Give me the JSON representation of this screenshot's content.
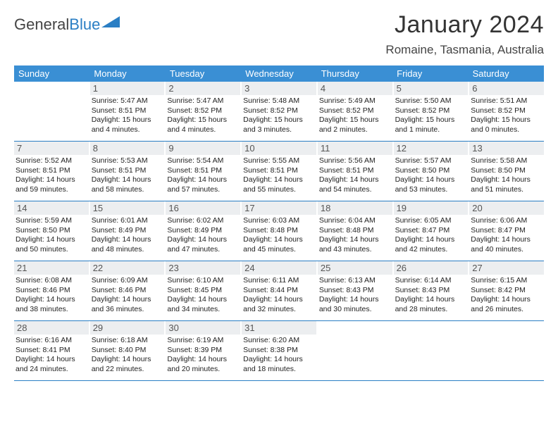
{
  "logo": {
    "general": "General",
    "blue": "Blue"
  },
  "title": "January 2024",
  "location": "Romaine, Tasmania, Australia",
  "colors": {
    "header_bg": "#3a8fd4",
    "divider": "#2a7ec4",
    "daynum_bg": "#eceef0",
    "text": "#222222",
    "logo_blue": "#2a7ec4",
    "logo_gray": "#444444"
  },
  "dayNames": [
    "Sunday",
    "Monday",
    "Tuesday",
    "Wednesday",
    "Thursday",
    "Friday",
    "Saturday"
  ],
  "startOffset": 1,
  "days": [
    {
      "n": 1,
      "rise": "5:47 AM",
      "set": "8:51 PM",
      "dl": "15 hours and 4 minutes."
    },
    {
      "n": 2,
      "rise": "5:47 AM",
      "set": "8:52 PM",
      "dl": "15 hours and 4 minutes."
    },
    {
      "n": 3,
      "rise": "5:48 AM",
      "set": "8:52 PM",
      "dl": "15 hours and 3 minutes."
    },
    {
      "n": 4,
      "rise": "5:49 AM",
      "set": "8:52 PM",
      "dl": "15 hours and 2 minutes."
    },
    {
      "n": 5,
      "rise": "5:50 AM",
      "set": "8:52 PM",
      "dl": "15 hours and 1 minute."
    },
    {
      "n": 6,
      "rise": "5:51 AM",
      "set": "8:52 PM",
      "dl": "15 hours and 0 minutes."
    },
    {
      "n": 7,
      "rise": "5:52 AM",
      "set": "8:51 PM",
      "dl": "14 hours and 59 minutes."
    },
    {
      "n": 8,
      "rise": "5:53 AM",
      "set": "8:51 PM",
      "dl": "14 hours and 58 minutes."
    },
    {
      "n": 9,
      "rise": "5:54 AM",
      "set": "8:51 PM",
      "dl": "14 hours and 57 minutes."
    },
    {
      "n": 10,
      "rise": "5:55 AM",
      "set": "8:51 PM",
      "dl": "14 hours and 55 minutes."
    },
    {
      "n": 11,
      "rise": "5:56 AM",
      "set": "8:51 PM",
      "dl": "14 hours and 54 minutes."
    },
    {
      "n": 12,
      "rise": "5:57 AM",
      "set": "8:50 PM",
      "dl": "14 hours and 53 minutes."
    },
    {
      "n": 13,
      "rise": "5:58 AM",
      "set": "8:50 PM",
      "dl": "14 hours and 51 minutes."
    },
    {
      "n": 14,
      "rise": "5:59 AM",
      "set": "8:50 PM",
      "dl": "14 hours and 50 minutes."
    },
    {
      "n": 15,
      "rise": "6:01 AM",
      "set": "8:49 PM",
      "dl": "14 hours and 48 minutes."
    },
    {
      "n": 16,
      "rise": "6:02 AM",
      "set": "8:49 PM",
      "dl": "14 hours and 47 minutes."
    },
    {
      "n": 17,
      "rise": "6:03 AM",
      "set": "8:48 PM",
      "dl": "14 hours and 45 minutes."
    },
    {
      "n": 18,
      "rise": "6:04 AM",
      "set": "8:48 PM",
      "dl": "14 hours and 43 minutes."
    },
    {
      "n": 19,
      "rise": "6:05 AM",
      "set": "8:47 PM",
      "dl": "14 hours and 42 minutes."
    },
    {
      "n": 20,
      "rise": "6:06 AM",
      "set": "8:47 PM",
      "dl": "14 hours and 40 minutes."
    },
    {
      "n": 21,
      "rise": "6:08 AM",
      "set": "8:46 PM",
      "dl": "14 hours and 38 minutes."
    },
    {
      "n": 22,
      "rise": "6:09 AM",
      "set": "8:46 PM",
      "dl": "14 hours and 36 minutes."
    },
    {
      "n": 23,
      "rise": "6:10 AM",
      "set": "8:45 PM",
      "dl": "14 hours and 34 minutes."
    },
    {
      "n": 24,
      "rise": "6:11 AM",
      "set": "8:44 PM",
      "dl": "14 hours and 32 minutes."
    },
    {
      "n": 25,
      "rise": "6:13 AM",
      "set": "8:43 PM",
      "dl": "14 hours and 30 minutes."
    },
    {
      "n": 26,
      "rise": "6:14 AM",
      "set": "8:43 PM",
      "dl": "14 hours and 28 minutes."
    },
    {
      "n": 27,
      "rise": "6:15 AM",
      "set": "8:42 PM",
      "dl": "14 hours and 26 minutes."
    },
    {
      "n": 28,
      "rise": "6:16 AM",
      "set": "8:41 PM",
      "dl": "14 hours and 24 minutes."
    },
    {
      "n": 29,
      "rise": "6:18 AM",
      "set": "8:40 PM",
      "dl": "14 hours and 22 minutes."
    },
    {
      "n": 30,
      "rise": "6:19 AM",
      "set": "8:39 PM",
      "dl": "14 hours and 20 minutes."
    },
    {
      "n": 31,
      "rise": "6:20 AM",
      "set": "8:38 PM",
      "dl": "14 hours and 18 minutes."
    }
  ],
  "labels": {
    "sunrise": "Sunrise:",
    "sunset": "Sunset:",
    "daylight": "Daylight:"
  }
}
